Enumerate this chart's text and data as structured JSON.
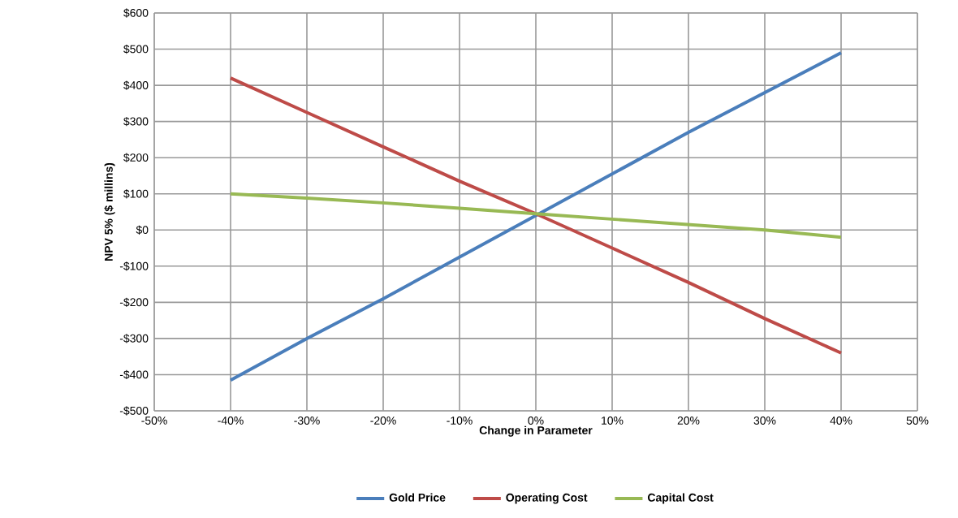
{
  "chart_data": {
    "type": "line",
    "xlabel": "Change in Parameter",
    "ylabel": "NPV 5% ($ millins)",
    "x": [
      -40,
      -30,
      -20,
      -10,
      0,
      10,
      20,
      30,
      40
    ],
    "series": [
      {
        "name": "Gold Price",
        "color": "#4a7ebb",
        "values": [
          -415,
          -300,
          -190,
          -75,
          40,
          155,
          270,
          380,
          490
        ]
      },
      {
        "name": "Operating Cost",
        "color": "#be4b48",
        "values": [
          420,
          325,
          230,
          135,
          45,
          -50,
          -145,
          -245,
          -340
        ]
      },
      {
        "name": "Capital Cost",
        "color": "#98b954",
        "values": [
          100,
          88,
          75,
          60,
          45,
          30,
          15,
          0,
          -20
        ]
      }
    ],
    "xlim": [
      -50,
      50
    ],
    "ylim": [
      -500,
      600
    ],
    "xticks": [
      {
        "value": -50,
        "label": "-50%"
      },
      {
        "value": -40,
        "label": "-40%"
      },
      {
        "value": -30,
        "label": "-30%"
      },
      {
        "value": -20,
        "label": "-20%"
      },
      {
        "value": -10,
        "label": "-10%"
      },
      {
        "value": 0,
        "label": "0%"
      },
      {
        "value": 10,
        "label": "10%"
      },
      {
        "value": 20,
        "label": "20%"
      },
      {
        "value": 30,
        "label": "30%"
      },
      {
        "value": 40,
        "label": "40%"
      },
      {
        "value": 50,
        "label": "50%"
      }
    ],
    "yticks": [
      {
        "value": -500,
        "label": "-$500"
      },
      {
        "value": -400,
        "label": "-$400"
      },
      {
        "value": -300,
        "label": "-$300"
      },
      {
        "value": -200,
        "label": "-$200"
      },
      {
        "value": -100,
        "label": "-$100"
      },
      {
        "value": 0,
        "label": "$0"
      },
      {
        "value": 100,
        "label": "$100"
      },
      {
        "value": 200,
        "label": "$200"
      },
      {
        "value": 300,
        "label": "$300"
      },
      {
        "value": 400,
        "label": "$400"
      },
      {
        "value": 500,
        "label": "$500"
      },
      {
        "value": 600,
        "label": "$600"
      }
    ],
    "grid": true,
    "legend": "bottom",
    "marker": "none",
    "line_style": "solid"
  }
}
